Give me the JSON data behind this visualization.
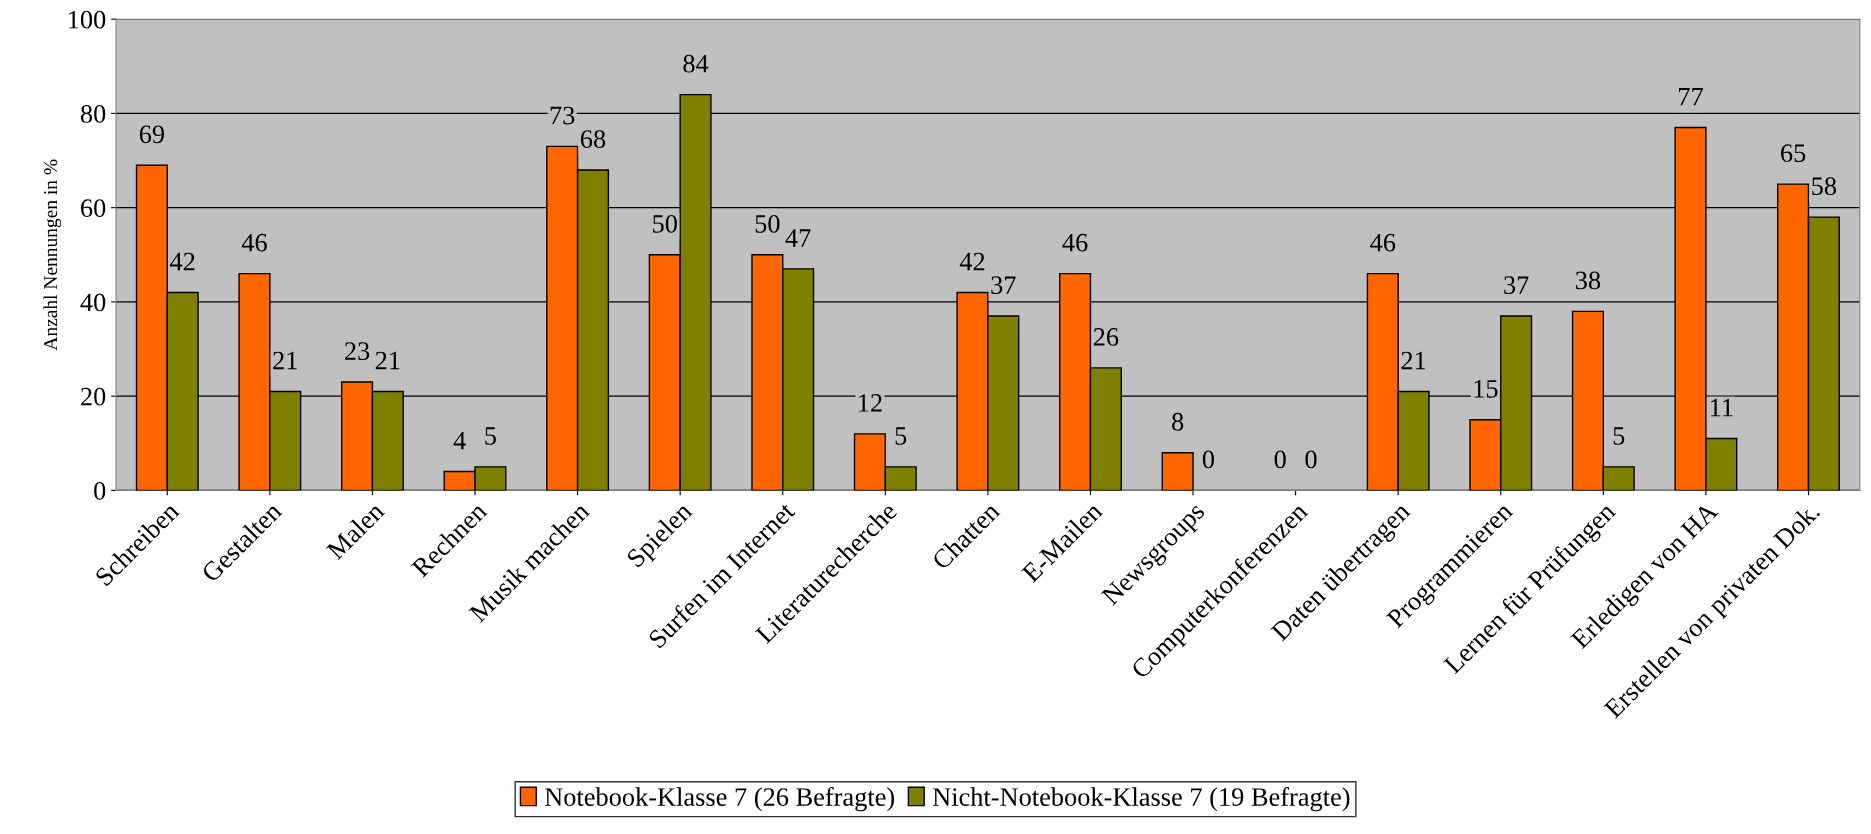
{
  "chart_data": {
    "type": "bar",
    "ylabel": "Anzahl Nennungen in %",
    "categories": [
      "Schreiben",
      "Gestalten",
      "Malen",
      "Rechnen",
      "Musik machen",
      "Spielen",
      "Surfen im Internet",
      "Literaturecherche",
      "Chatten",
      "E-Mailen",
      "Newsgroups",
      "Computerkonferenzen",
      "Daten übertragen",
      "Programmieren",
      "Lernen für Prüfungen",
      "Erledigen von HA",
      "Erstellen von privaten Dok."
    ],
    "series": [
      {
        "name": "Notebook-Klasse 7 (26 Befragte)",
        "color": "#ff6600",
        "values": [
          69,
          46,
          23,
          4,
          73,
          50,
          50,
          12,
          42,
          46,
          8,
          0,
          46,
          15,
          38,
          77,
          65
        ]
      },
      {
        "name": "Nicht-Notebook-Klasse 7 (19 Befragte)",
        "color": "#808000",
        "values": [
          42,
          21,
          21,
          5,
          68,
          84,
          47,
          5,
          37,
          26,
          0,
          0,
          21,
          37,
          5,
          11,
          58
        ]
      }
    ],
    "ylim": [
      0,
      100
    ],
    "yticks": [
      0,
      20,
      40,
      60,
      80,
      100
    ],
    "grid": "y",
    "data_labels": true,
    "legend": "bottom"
  }
}
